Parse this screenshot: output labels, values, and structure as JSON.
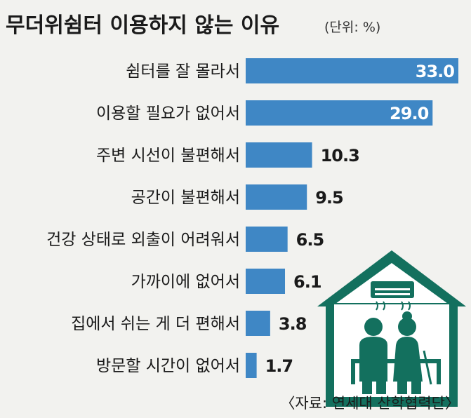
{
  "chart_data": {
    "type": "bar",
    "orientation": "horizontal",
    "title": "무더위쉼터 이용하지 않는 이유",
    "unit": "(단위: %)",
    "categories": [
      "쉼터를 잘 몰라서",
      "이용할 필요가 없어서",
      "주변 시선이 불편해서",
      "공간이 불편해서",
      "건강 상태로 외출이 어려워서",
      "가까이에 없어서",
      "집에서 쉬는 게 더 편해서",
      "방문할 시간이 없어서"
    ],
    "values": [
      33.0,
      29.0,
      10.3,
      9.5,
      6.5,
      6.1,
      3.8,
      1.7
    ],
    "value_labels": [
      "33.0",
      "29.0",
      "10.3",
      "9.5",
      "6.5",
      "6.1",
      "3.8",
      "1.7"
    ],
    "bar_color": "#3f87c5",
    "source": "〈자료: 연세대 산학협력단〉"
  },
  "colors": {
    "background": "#f2f2ef",
    "house": "#13705e",
    "house_inner": "#ffffff"
  },
  "illustration": "house-shelter-icon"
}
